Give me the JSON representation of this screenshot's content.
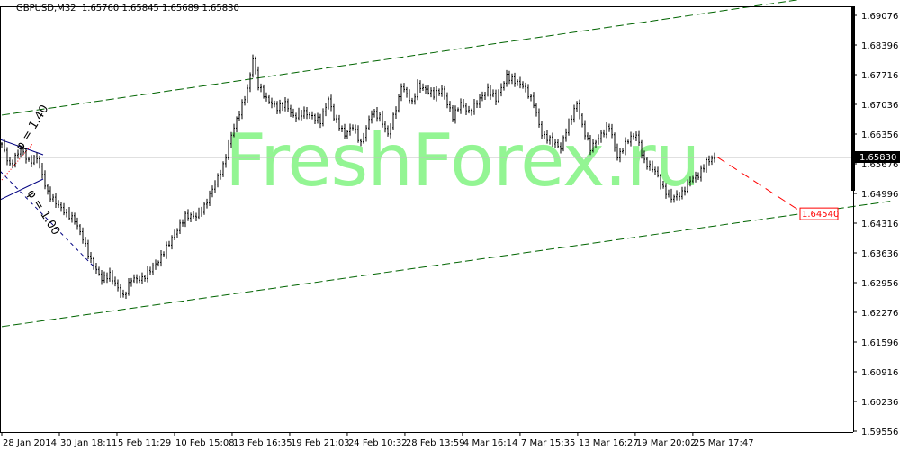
{
  "header": {
    "symbol": "GBPUSD,M32",
    "ohlc": "1.65760 1.65845 1.65689 1.65830"
  },
  "watermark": "FreshForex.ru",
  "colors": {
    "background": "#ffffff",
    "bars": "#000000",
    "channel": "#006400",
    "fib": "#000080",
    "forecast": "#ff0000",
    "watermark": "#8ef58e",
    "current_price_line": "#c0c0c0"
  },
  "chart_data": {
    "type": "line",
    "title": "",
    "yticks": [
      "1.69076",
      "1.68396",
      "1.67716",
      "1.67036",
      "1.66356",
      "1.65676",
      "1.64996",
      "1.64316",
      "1.63636",
      "1.62956",
      "1.62276",
      "1.61596",
      "1.60916",
      "1.60236",
      "1.59556"
    ],
    "ylim": [
      1.59556,
      1.69076
    ],
    "xticks": [
      "28 Jan 2014",
      "30 Jan 18:11",
      "5 Feb 11:29",
      "10 Feb 15:08",
      "13 Feb 16:35",
      "19 Feb 21:03",
      "24 Feb 10:32",
      "28 Feb 13:59",
      "4 Mar 16:14",
      "7 Mar 15:35",
      "13 Mar 16:27",
      "19 Mar 20:02",
      "25 Mar 17:47"
    ],
    "bars_per_xtick": 21.33,
    "series": [
      {
        "bar_index": [
          0,
          3,
          7,
          10,
          13,
          17,
          20,
          23,
          27,
          30,
          33,
          37,
          40,
          43,
          45,
          48,
          52,
          55,
          58,
          62,
          65,
          68,
          72,
          75,
          78,
          82,
          85,
          88,
          91,
          93,
          95,
          98,
          102,
          105,
          108,
          112,
          115,
          118,
          121,
          123,
          127,
          130,
          133,
          137,
          140,
          143,
          147,
          148,
          152,
          154,
          157,
          160,
          163,
          167,
          170,
          173,
          177,
          180,
          183,
          187,
          190,
          193,
          197,
          200,
          203,
          207,
          209,
          213,
          215,
          218,
          222,
          225,
          228,
          232,
          235,
          238,
          242,
          245,
          248,
          252,
          255,
          258,
          261,
          264
        ],
        "price": [
          1.6613,
          1.6562,
          1.6603,
          1.6572,
          1.6582,
          1.65,
          1.6479,
          1.6459,
          1.6438,
          1.6397,
          1.6345,
          1.6304,
          1.6314,
          1.6283,
          1.6263,
          1.6304,
          1.6304,
          1.6325,
          1.6345,
          1.6386,
          1.6417,
          1.6448,
          1.6448,
          1.6469,
          1.651,
          1.6562,
          1.6634,
          1.6685,
          1.6737,
          1.6809,
          1.6747,
          1.6716,
          1.6695,
          1.6706,
          1.6675,
          1.6685,
          1.6675,
          1.6665,
          1.6716,
          1.6675,
          1.6634,
          1.6654,
          1.6613,
          1.6685,
          1.6675,
          1.6634,
          1.6716,
          1.6747,
          1.6706,
          1.6747,
          1.6737,
          1.6726,
          1.6737,
          1.6675,
          1.6706,
          1.6685,
          1.6716,
          1.6737,
          1.6716,
          1.6768,
          1.6757,
          1.6747,
          1.6706,
          1.6634,
          1.6623,
          1.6603,
          1.6644,
          1.6706,
          1.6654,
          1.6603,
          1.6634,
          1.6654,
          1.6582,
          1.6623,
          1.6634,
          1.6572,
          1.6551,
          1.651,
          1.6489,
          1.65,
          1.6531,
          1.6541,
          1.6572,
          1.6583
        ]
      }
    ],
    "current_price": "1.65830",
    "forecast": {
      "from_bar": 265,
      "from_price": 1.6583,
      "to_bar": 295,
      "to_price": 1.6454,
      "label": "1.64540"
    },
    "channel": {
      "upper": [
        [
          0,
          1.6679
        ],
        [
          287,
          1.6936
        ]
      ],
      "lower": [
        [
          0,
          1.6195
        ],
        [
          319,
          1.6473
        ]
      ]
    },
    "fib_labels": [
      "φ = 1.40",
      "φ = 1.00"
    ],
    "grid": false,
    "legend": "none"
  }
}
